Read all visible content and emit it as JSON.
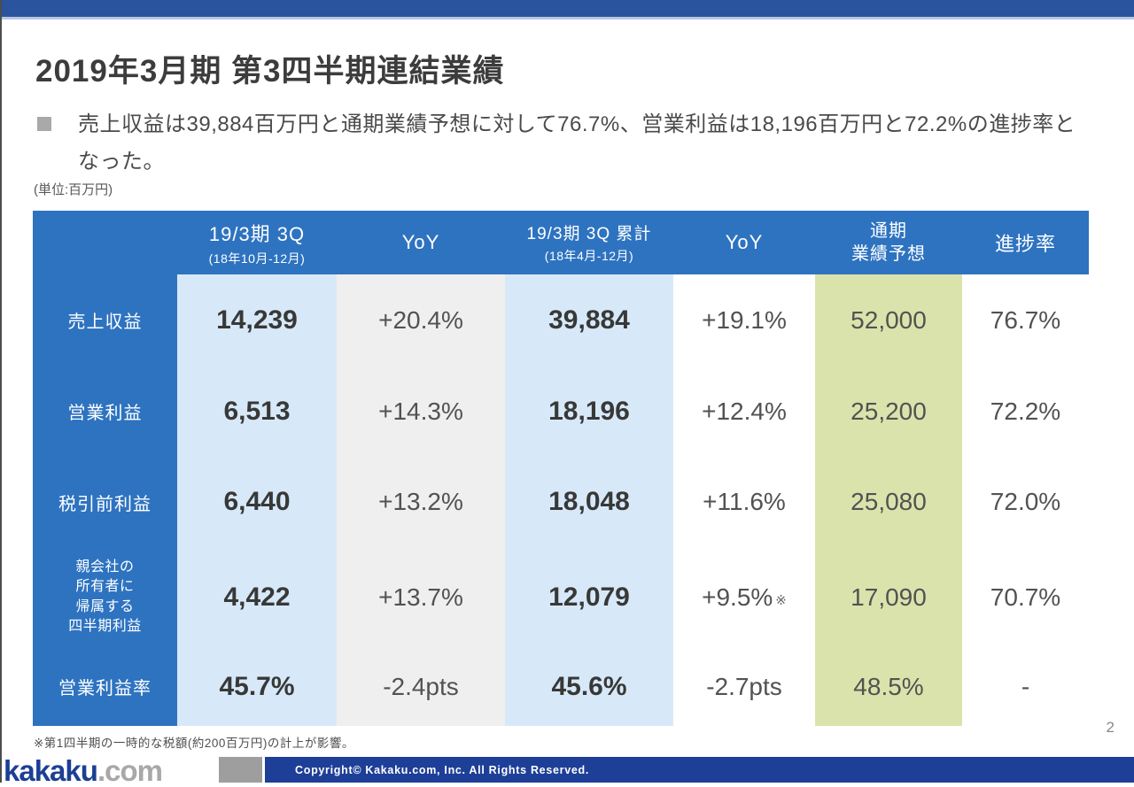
{
  "slide": {
    "title": "2019年3月期 第3四半期連結業績",
    "bullet_text": "売上収益は39,884百万円と通期業績予想に対して76.7%、営業利益は18,196百万円と72.2%の進捗率となった。",
    "unit_note": "(単位:百万円)",
    "footnote": "※第1四半期の一時的な税額(約200百万円)の計上が影響。",
    "page_number": "2"
  },
  "table": {
    "columns": [
      {
        "label": "19/3期 3Q",
        "sub": "(18年10月-12月)"
      },
      {
        "label": "YoY"
      },
      {
        "label": "19/3期 3Q 累計",
        "sub": "(18年4月-12月)"
      },
      {
        "label": "YoY"
      },
      {
        "label_line1": "通期",
        "label_line2": "業績予想"
      },
      {
        "label": "進捗率"
      }
    ],
    "rows": [
      {
        "label": "売上収益",
        "q3": "14,239",
        "yoy_q": "+20.4%",
        "cum": "39,884",
        "yoy_cum": "+19.1%",
        "forecast": "52,000",
        "progress": "76.7%"
      },
      {
        "label": "営業利益",
        "q3": "6,513",
        "yoy_q": "+14.3%",
        "cum": "18,196",
        "yoy_cum": "+12.4%",
        "forecast": "25,200",
        "progress": "72.2%"
      },
      {
        "label": "税引前利益",
        "q3": "6,440",
        "yoy_q": "+13.2%",
        "cum": "18,048",
        "yoy_cum": "+11.6%",
        "forecast": "25,080",
        "progress": "72.0%"
      },
      {
        "label_lines": [
          "親会社の",
          "所有者に",
          "帰属する",
          "四半期利益"
        ],
        "q3": "4,422",
        "yoy_q": "+13.7%",
        "cum": "12,079",
        "yoy_cum": "+9.5%",
        "yoy_cum_note": "※",
        "forecast": "17,090",
        "progress": "70.7%"
      },
      {
        "label": "営業利益率",
        "q3": "45.7%",
        "yoy_q": "-2.4pts",
        "cum": "45.6%",
        "yoy_cum": "-2.7pts",
        "forecast": "48.5%",
        "progress": "-"
      }
    ]
  },
  "footer": {
    "logo_main": "kakaku",
    "logo_suffix": ".com",
    "copyright": "Copyright© Kakaku.com, Inc. All Rights Reserved."
  },
  "colors": {
    "top_bar_blue": "#2b549e",
    "table_header_blue": "#2e73c0",
    "light_blue_cell": "#d7e9f8",
    "gray_cell": "#efefef",
    "green_cell": "#dbe3ac",
    "footer_navy": "#1e3f97",
    "logo_navy": "#1c3f94"
  }
}
